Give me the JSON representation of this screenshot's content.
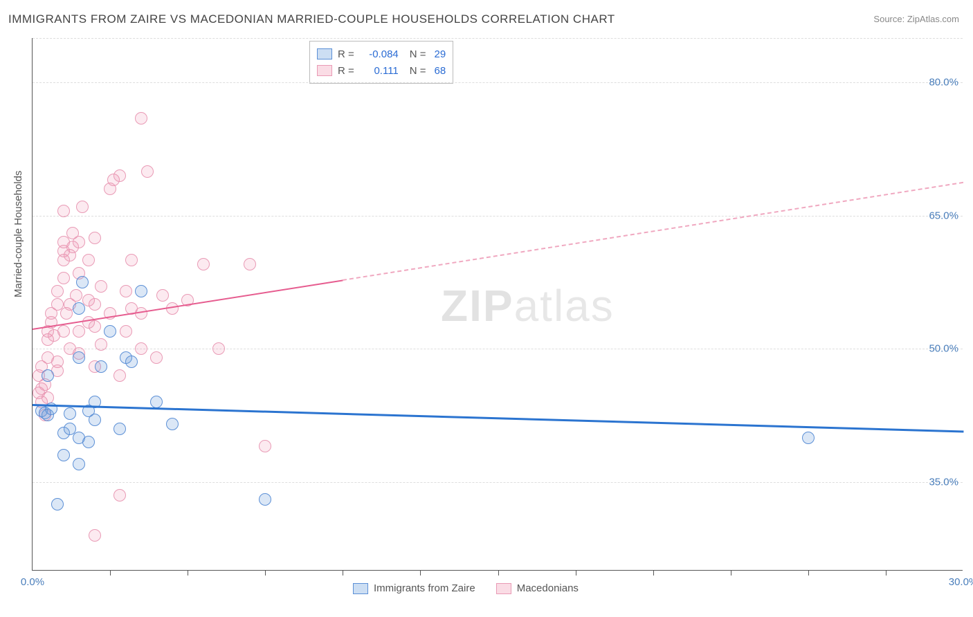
{
  "title": "IMMIGRANTS FROM ZAIRE VS MACEDONIAN MARRIED-COUPLE HOUSEHOLDS CORRELATION CHART",
  "source_label": "Source:",
  "source_value": "ZipAtlas.com",
  "ylabel": "Married-couple Households",
  "watermark_bold": "ZIP",
  "watermark_light": "atlas",
  "chart": {
    "type": "scatter",
    "xlim": [
      0,
      30
    ],
    "ylim": [
      25,
      85
    ],
    "x_ticks": [
      0,
      30
    ],
    "x_tick_labels": [
      "0.0%",
      "30.0%"
    ],
    "x_minor_ticks": [
      2.5,
      5,
      7.5,
      10,
      12.5,
      15,
      17.5,
      20,
      22.5,
      25,
      27.5
    ],
    "y_ticks": [
      35,
      50,
      65,
      80
    ],
    "y_tick_labels": [
      "35.0%",
      "50.0%",
      "65.0%",
      "80.0%"
    ],
    "grid_color": "#dddddd",
    "background": "#ffffff",
    "series": [
      {
        "name": "Immigrants from Zaire",
        "color_fill": "rgba(110,160,220,0.25)",
        "color_stroke": "#5b8fd6",
        "R": "-0.084",
        "N": "29",
        "trend": {
          "x1": 0,
          "y1": 43.8,
          "x2": 30,
          "y2": 40.8,
          "color": "#2b74d0"
        },
        "points": [
          [
            0.3,
            43.0
          ],
          [
            0.4,
            42.8
          ],
          [
            0.5,
            42.5
          ],
          [
            0.6,
            43.2
          ],
          [
            0.5,
            47.0
          ],
          [
            1.0,
            38.0
          ],
          [
            1.0,
            40.5
          ],
          [
            1.2,
            41.0
          ],
          [
            1.2,
            42.7
          ],
          [
            1.5,
            37.0
          ],
          [
            1.5,
            40.0
          ],
          [
            1.5,
            49.0
          ],
          [
            1.5,
            54.5
          ],
          [
            1.6,
            57.5
          ],
          [
            1.8,
            39.5
          ],
          [
            1.8,
            43.0
          ],
          [
            2.0,
            42.0
          ],
          [
            2.0,
            44.0
          ],
          [
            2.2,
            48.0
          ],
          [
            2.5,
            52.0
          ],
          [
            2.8,
            41.0
          ],
          [
            3.0,
            49.0
          ],
          [
            3.2,
            48.5
          ],
          [
            3.5,
            56.5
          ],
          [
            4.0,
            44.0
          ],
          [
            4.5,
            41.5
          ],
          [
            0.8,
            32.5
          ],
          [
            7.5,
            33.0
          ],
          [
            25.0,
            40.0
          ]
        ]
      },
      {
        "name": "Macedonians",
        "color_fill": "rgba(240,140,170,0.18)",
        "color_stroke": "#e99ab5",
        "R": "0.111",
        "N": "68",
        "trend_solid": {
          "x1": 0,
          "y1": 52.3,
          "x2": 10,
          "y2": 57.8,
          "color": "#e65c8f"
        },
        "trend_dash": {
          "x1": 10,
          "y1": 57.8,
          "x2": 30,
          "y2": 68.8,
          "color": "#f0a8c0"
        },
        "points": [
          [
            0.2,
            45.0
          ],
          [
            0.2,
            47.0
          ],
          [
            0.3,
            44.0
          ],
          [
            0.3,
            45.5
          ],
          [
            0.3,
            48.0
          ],
          [
            0.4,
            42.5
          ],
          [
            0.4,
            46.0
          ],
          [
            0.5,
            44.5
          ],
          [
            0.5,
            49.0
          ],
          [
            0.5,
            51.0
          ],
          [
            0.5,
            52.0
          ],
          [
            0.6,
            53.0
          ],
          [
            0.6,
            54.0
          ],
          [
            0.7,
            51.5
          ],
          [
            0.8,
            55.0
          ],
          [
            0.8,
            56.5
          ],
          [
            0.8,
            48.5
          ],
          [
            0.8,
            47.5
          ],
          [
            1.0,
            52.0
          ],
          [
            1.0,
            58.0
          ],
          [
            1.0,
            60.0
          ],
          [
            1.0,
            61.0
          ],
          [
            1.0,
            62.0
          ],
          [
            1.1,
            54.0
          ],
          [
            1.2,
            50.0
          ],
          [
            1.2,
            55.0
          ],
          [
            1.2,
            60.5
          ],
          [
            1.3,
            61.5
          ],
          [
            1.3,
            63.0
          ],
          [
            1.4,
            56.0
          ],
          [
            1.5,
            49.5
          ],
          [
            1.5,
            52.0
          ],
          [
            1.5,
            58.5
          ],
          [
            1.5,
            62.0
          ],
          [
            1.6,
            66.0
          ],
          [
            1.8,
            53.0
          ],
          [
            1.8,
            55.5
          ],
          [
            1.8,
            60.0
          ],
          [
            2.0,
            48.0
          ],
          [
            2.0,
            52.5
          ],
          [
            2.0,
            55.0
          ],
          [
            2.0,
            62.5
          ],
          [
            2.2,
            50.5
          ],
          [
            2.2,
            57.0
          ],
          [
            2.5,
            54.0
          ],
          [
            2.5,
            68.0
          ],
          [
            2.6,
            69.0
          ],
          [
            2.8,
            47.0
          ],
          [
            2.8,
            69.5
          ],
          [
            3.0,
            52.0
          ],
          [
            3.0,
            56.5
          ],
          [
            3.2,
            54.5
          ],
          [
            3.2,
            60.0
          ],
          [
            3.5,
            50.0
          ],
          [
            3.5,
            54.0
          ],
          [
            3.5,
            76.0
          ],
          [
            3.7,
            70.0
          ],
          [
            4.0,
            49.0
          ],
          [
            4.2,
            56.0
          ],
          [
            4.5,
            54.5
          ],
          [
            5.0,
            55.5
          ],
          [
            5.5,
            59.5
          ],
          [
            6.0,
            50.0
          ],
          [
            7.0,
            59.5
          ],
          [
            7.5,
            39.0
          ],
          [
            2.0,
            29.0
          ],
          [
            2.8,
            33.5
          ],
          [
            1.0,
            65.5
          ]
        ]
      }
    ],
    "legend_bottom": [
      {
        "label": "Immigrants from Zaire",
        "swatch": "blue"
      },
      {
        "label": "Macedonians",
        "swatch": "pink"
      }
    ]
  }
}
